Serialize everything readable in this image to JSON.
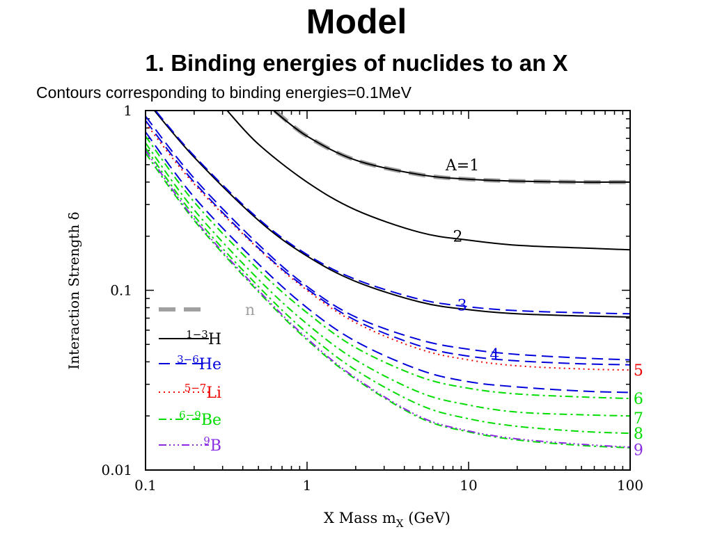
{
  "page": {
    "title": "Model",
    "subtitle": "1. Binding energies of nuclides to an X",
    "caption": "Contours corresponding to binding energies=0.1MeV"
  },
  "chart_data": {
    "type": "line",
    "xscale": "log",
    "yscale": "log",
    "xlim": [
      0.1,
      100
    ],
    "ylim": [
      0.01,
      1
    ],
    "xlabel_main": "X Mass m",
    "xlabel_sub": "X",
    "xlabel_tail": " (GeV)",
    "ylabel": "Interaction Strength δ",
    "xticks": [
      {
        "value": 0.1,
        "label": "0.1"
      },
      {
        "value": 1,
        "label": "1"
      },
      {
        "value": 10,
        "label": "10"
      },
      {
        "value": 100,
        "label": "100"
      }
    ],
    "yticks": [
      {
        "value": 0.01,
        "label": "0.01"
      },
      {
        "value": 0.1,
        "label": "0.1"
      },
      {
        "value": 1,
        "label": "1"
      }
    ],
    "series": [
      {
        "name": "A=1 (n)",
        "group": "n",
        "color": "#a0a0a0",
        "x": [
          0.63,
          1,
          2,
          5,
          10,
          20,
          50,
          100
        ],
        "y": [
          1.0,
          0.72,
          0.53,
          0.44,
          0.415,
          0.405,
          0.4,
          0.4
        ]
      },
      {
        "name": "A=1 (H)",
        "group": "H",
        "color": "#000000",
        "x": [
          0.62,
          1,
          2,
          5,
          10,
          20,
          50,
          100
        ],
        "y": [
          1.0,
          0.72,
          0.53,
          0.44,
          0.415,
          0.405,
          0.4,
          0.4
        ]
      },
      {
        "name": "A=2",
        "group": "H",
        "color": "#000000",
        "x": [
          0.32,
          0.5,
          1,
          2,
          5,
          10,
          20,
          50,
          100
        ],
        "y": [
          1.0,
          0.65,
          0.4,
          0.28,
          0.21,
          0.19,
          0.178,
          0.172,
          0.168
        ]
      },
      {
        "name": "A=3 (H)",
        "group": "H",
        "color": "#000000",
        "x": [
          0.1,
          0.2,
          0.5,
          1,
          2,
          5,
          10,
          20,
          50,
          100
        ],
        "y": [
          1.15,
          0.55,
          0.245,
          0.155,
          0.112,
          0.086,
          0.078,
          0.074,
          0.072,
          0.071
        ]
      },
      {
        "name": "A=3 (He)",
        "group": "He",
        "color": "#0000dd",
        "x": [
          0.1,
          0.2,
          0.5,
          1,
          2,
          5,
          10,
          20,
          50,
          100
        ],
        "y": [
          1.17,
          0.56,
          0.25,
          0.158,
          0.115,
          0.089,
          0.081,
          0.077,
          0.075,
          0.074
        ]
      },
      {
        "name": "A=4",
        "group": "He",
        "color": "#0000dd",
        "x": [
          0.1,
          0.2,
          0.5,
          1,
          2,
          5,
          10,
          20,
          50,
          100
        ],
        "y": [
          0.93,
          0.42,
          0.18,
          0.105,
          0.071,
          0.053,
          0.047,
          0.044,
          0.042,
          0.041
        ]
      },
      {
        "name": "A=5 (Li)",
        "group": "Li",
        "color": "#ee0000",
        "x": [
          0.1,
          0.2,
          0.5,
          1,
          2,
          5,
          10,
          20,
          50,
          100
        ],
        "y": [
          0.85,
          0.39,
          0.17,
          0.1,
          0.066,
          0.047,
          0.041,
          0.038,
          0.0365,
          0.036
        ]
      },
      {
        "name": "A=5 (He)",
        "group": "He",
        "color": "#0000dd",
        "x": [
          0.1,
          0.2,
          0.5,
          1,
          2,
          5,
          10,
          20,
          50,
          100
        ],
        "y": [
          0.88,
          0.4,
          0.172,
          0.102,
          0.068,
          0.049,
          0.043,
          0.0405,
          0.039,
          0.0385
        ]
      },
      {
        "name": "A=6 (He)",
        "group": "He",
        "color": "#0000dd",
        "x": [
          0.1,
          0.2,
          0.5,
          1,
          2,
          5,
          10,
          20,
          50,
          100
        ],
        "y": [
          0.76,
          0.33,
          0.14,
          0.08,
          0.052,
          0.036,
          0.031,
          0.029,
          0.0275,
          0.027
        ]
      },
      {
        "name": "A=6 (Be)",
        "group": "Be",
        "color": "#00dd00",
        "x": [
          0.1,
          0.2,
          0.5,
          1,
          2,
          5,
          10,
          20,
          50,
          100
        ],
        "y": [
          0.72,
          0.31,
          0.13,
          0.075,
          0.048,
          0.033,
          0.0285,
          0.0265,
          0.0255,
          0.025
        ]
      },
      {
        "name": "A=7",
        "group": "Be",
        "color": "#00dd00",
        "x": [
          0.1,
          0.2,
          0.5,
          1,
          2,
          5,
          10,
          20,
          50,
          100
        ],
        "y": [
          0.66,
          0.28,
          0.115,
          0.065,
          0.041,
          0.027,
          0.023,
          0.021,
          0.0203,
          0.02
        ]
      },
      {
        "name": "A=8",
        "group": "Be",
        "color": "#00dd00",
        "x": [
          0.1,
          0.2,
          0.5,
          1,
          2,
          5,
          10,
          20,
          50,
          100
        ],
        "y": [
          0.62,
          0.26,
          0.105,
          0.058,
          0.036,
          0.023,
          0.0193,
          0.0175,
          0.0164,
          0.016
        ]
      },
      {
        "name": "A=9 (Be)",
        "group": "Be",
        "color": "#00dd00",
        "x": [
          0.1,
          0.2,
          0.5,
          1,
          2,
          5,
          10,
          20,
          50,
          100
        ],
        "y": [
          0.58,
          0.245,
          0.098,
          0.053,
          0.032,
          0.0195,
          0.0163,
          0.0147,
          0.0137,
          0.0133
        ]
      },
      {
        "name": "A=9 (B)",
        "group": "B",
        "color": "#8a2be2",
        "x": [
          0.1,
          0.2,
          0.5,
          1,
          2,
          5,
          10,
          20,
          50,
          100
        ],
        "y": [
          0.6,
          0.25,
          0.1,
          0.054,
          0.0325,
          0.0198,
          0.0165,
          0.0149,
          0.0139,
          0.0134
        ]
      }
    ],
    "curve_labels": [
      {
        "text": "A=1",
        "x": 7.2,
        "y": 0.5,
        "color": "#000000"
      },
      {
        "text": "2",
        "x": 8.0,
        "y": 0.2,
        "color": "#000000"
      },
      {
        "text": "3",
        "x": 8.5,
        "y": 0.083,
        "color": "#0000dd"
      },
      {
        "text": "4",
        "x": 13.5,
        "y": 0.044,
        "color": "#0000dd"
      },
      {
        "text": "5",
        "x": 105,
        "y": 0.036,
        "color": "#ee0000"
      },
      {
        "text": "6",
        "x": 105,
        "y": 0.025,
        "color": "#00dd00"
      },
      {
        "text": "7",
        "x": 105,
        "y": 0.0195,
        "color": "#00dd00"
      },
      {
        "text": "8",
        "x": 105,
        "y": 0.016,
        "color": "#00dd00"
      },
      {
        "text": "9",
        "x": 105,
        "y": 0.013,
        "color": "#8a2be2"
      }
    ],
    "legend": {
      "position": "lower-left",
      "entries": [
        {
          "group": "n",
          "sup": "",
          "element": "n",
          "color": "#a0a0a0"
        },
        {
          "group": "H",
          "sup": "1−3",
          "element": "H",
          "color": "#000000"
        },
        {
          "group": "He",
          "sup": "3−6",
          "element": "He",
          "color": "#0000dd"
        },
        {
          "group": "Li",
          "sup": "5−7",
          "element": "Li",
          "color": "#ee0000"
        },
        {
          "group": "Be",
          "sup": "6−9",
          "element": "Be",
          "color": "#00dd00"
        },
        {
          "group": "B",
          "sup": "9",
          "element": "B",
          "color": "#8a2be2"
        }
      ]
    }
  }
}
